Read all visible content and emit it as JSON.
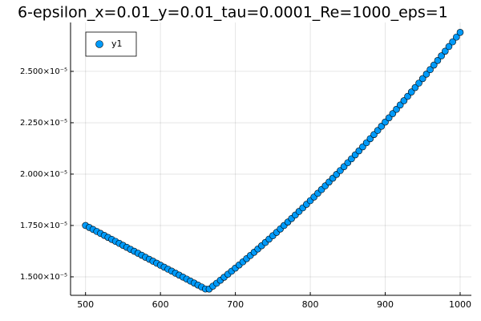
{
  "chart_data": {
    "type": "scatter",
    "title": "6-epsilon_x=0.01_y=0.01_tau=0.0001_Re=1000_eps=1",
    "x": [
      500,
      505,
      510,
      515,
      520,
      525,
      530,
      535,
      540,
      545,
      550,
      555,
      560,
      565,
      570,
      575,
      580,
      585,
      590,
      595,
      600,
      605,
      610,
      615,
      620,
      625,
      630,
      635,
      640,
      645,
      650,
      655,
      660,
      665,
      670,
      675,
      680,
      685,
      690,
      695,
      700,
      705,
      710,
      715,
      720,
      725,
      730,
      735,
      740,
      745,
      750,
      755,
      760,
      765,
      770,
      775,
      780,
      785,
      790,
      795,
      800,
      805,
      810,
      815,
      820,
      825,
      830,
      835,
      840,
      845,
      850,
      855,
      860,
      865,
      870,
      875,
      880,
      885,
      890,
      895,
      900,
      905,
      910,
      915,
      920,
      925,
      930,
      935,
      940,
      945,
      950,
      955,
      960,
      965,
      970,
      975,
      980,
      985,
      990,
      995,
      1000
    ],
    "series": [
      {
        "name": "y1",
        "color": "#009af9",
        "values": [
          1.75e-05,
          1.7403e-05,
          1.7307e-05,
          1.721e-05,
          1.7113e-05,
          1.7017e-05,
          1.692e-05,
          1.6823e-05,
          1.6727e-05,
          1.663e-05,
          1.6534e-05,
          1.6437e-05,
          1.634e-05,
          1.6244e-05,
          1.6147e-05,
          1.6051e-05,
          1.5954e-05,
          1.5857e-05,
          1.5761e-05,
          1.5664e-05,
          1.5567e-05,
          1.5471e-05,
          1.5374e-05,
          1.5278e-05,
          1.5181e-05,
          1.5084e-05,
          1.4988e-05,
          1.4891e-05,
          1.4794e-05,
          1.4698e-05,
          1.4601e-05,
          1.4505e-05,
          1.4408e-05,
          1.4406e-05,
          1.4548e-05,
          1.4691e-05,
          1.4836e-05,
          1.4981e-05,
          1.5129e-05,
          1.5277e-05,
          1.5427e-05,
          1.5578e-05,
          1.5731e-05,
          1.5885e-05,
          1.604e-05,
          1.6197e-05,
          1.6355e-05,
          1.6514e-05,
          1.6675e-05,
          1.6837e-05,
          1.7001e-05,
          1.7165e-05,
          1.7331e-05,
          1.7499e-05,
          1.7668e-05,
          1.7838e-05,
          1.801e-05,
          1.8183e-05,
          1.8357e-05,
          1.8532e-05,
          1.8709e-05,
          1.8888e-05,
          1.9067e-05,
          1.9248e-05,
          1.9431e-05,
          1.9615e-05,
          1.98e-05,
          1.9986e-05,
          2.0174e-05,
          2.0363e-05,
          2.0554e-05,
          2.0745e-05,
          2.0939e-05,
          2.1133e-05,
          2.1329e-05,
          2.1526e-05,
          2.1725e-05,
          2.1925e-05,
          2.2126e-05,
          2.2329e-05,
          2.2533e-05,
          2.2739e-05,
          2.2945e-05,
          2.3153e-05,
          2.3363e-05,
          2.3574e-05,
          2.3786e-05,
          2.3999e-05,
          2.4214e-05,
          2.4431e-05,
          2.4648e-05,
          2.4867e-05,
          2.5087e-05,
          2.5309e-05,
          2.5532e-05,
          2.5756e-05,
          2.5982e-05,
          2.6209e-05,
          2.6438e-05,
          2.6667e-05,
          2.6899e-05
        ]
      }
    ],
    "xlim": [
      480,
      1015
    ],
    "xticks": [
      500,
      600,
      700,
      800,
      900,
      1000
    ],
    "ylim": [
      1.41e-05,
      2.738e-05
    ],
    "yticks": [
      {
        "value": 1.5e-05,
        "label": "1.500×10⁻⁵"
      },
      {
        "value": 1.75e-05,
        "label": "1.750×10⁻⁵"
      },
      {
        "value": 2e-05,
        "label": "2.000×10⁻⁵"
      },
      {
        "value": 2.25e-05,
        "label": "2.250×10⁻⁵"
      },
      {
        "value": 2.5e-05,
        "label": "2.500×10⁻⁵"
      }
    ],
    "grid": true,
    "legend": "top-left"
  }
}
